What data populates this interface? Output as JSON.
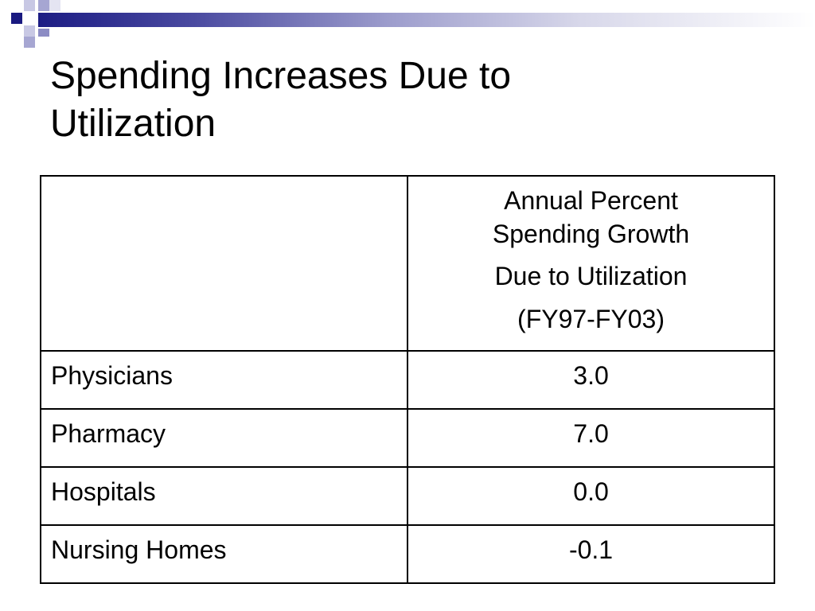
{
  "slide": {
    "title_line1": "Spending Increases Due to",
    "title_line2": "Utilization"
  },
  "table": {
    "header": {
      "corner": "",
      "line1": "Annual Percent",
      "line2": "Spending Growth",
      "line3": "Due to Utilization",
      "line4": "(FY97-FY03)"
    },
    "rows": [
      {
        "label": "Physicians",
        "value": "3.0"
      },
      {
        "label": "Pharmacy",
        "value": "7.0"
      },
      {
        "label": "Hospitals",
        "value": "0.0"
      },
      {
        "label": "Nursing Homes",
        "value": "-0.1"
      }
    ]
  },
  "colors": {
    "accent": "#1c1c84"
  }
}
